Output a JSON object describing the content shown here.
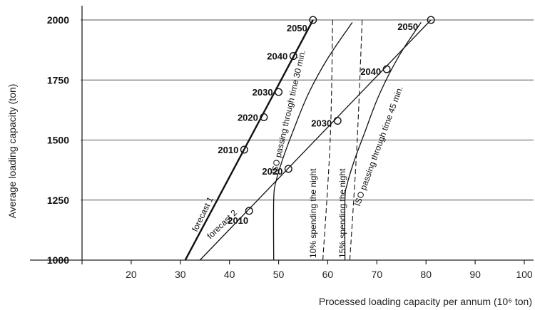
{
  "chart_data": {
    "type": "line",
    "title": "",
    "xlabel": "Processed loading capacity per annum (10⁶ ton)",
    "ylabel": "Average loading capacity (ton)",
    "xlim": [
      10,
      100
    ],
    "ylim": [
      1000,
      2000
    ],
    "x_ticks": [
      "20",
      "30",
      "40",
      "50",
      "60",
      "70",
      "80",
      "90",
      "100"
    ],
    "y_ticks": [
      "1000",
      "1250",
      "1500",
      "1750",
      "2000"
    ],
    "grid": "horizontal",
    "series": [
      {
        "name": "forecast 1",
        "style": "solid-thick",
        "points": [
          {
            "year": "2010",
            "x": 43,
            "y": 1460
          },
          {
            "year": "2020",
            "x": 47,
            "y": 1595
          },
          {
            "year": "2030",
            "x": 50,
            "y": 1700
          },
          {
            "year": "2040",
            "x": 53,
            "y": 1850
          },
          {
            "year": "2050",
            "x": 57,
            "y": 2000
          }
        ],
        "line": [
          [
            31,
            1000
          ],
          [
            57,
            2000
          ]
        ]
      },
      {
        "name": "forecast 2",
        "style": "solid",
        "points": [
          {
            "year": "2010",
            "x": 44,
            "y": 1205
          },
          {
            "year": "2020",
            "x": 52,
            "y": 1380
          },
          {
            "year": "2030",
            "x": 62,
            "y": 1580
          },
          {
            "year": "2040",
            "x": 72,
            "y": 1795
          },
          {
            "year": "2050",
            "x": 81,
            "y": 2000
          }
        ],
        "line": [
          [
            34,
            1000
          ],
          [
            81,
            2000
          ]
        ]
      },
      {
        "name": "ISO passing through time 30 min.",
        "style": "curve",
        "line": [
          [
            49,
            1000
          ],
          [
            49,
            1250
          ],
          [
            49.5,
            1330
          ],
          [
            51,
            1430
          ],
          [
            53,
            1540
          ],
          [
            56,
            1690
          ],
          [
            60,
            1840
          ],
          [
            65,
            1990
          ]
        ]
      },
      {
        "name": "ISO passing through time 45 min.",
        "style": "curve",
        "line": [
          [
            63.5,
            1000
          ],
          [
            63.5,
            1250
          ],
          [
            64,
            1320
          ],
          [
            65.5,
            1420
          ],
          [
            67.5,
            1530
          ],
          [
            70.5,
            1690
          ],
          [
            74.5,
            1850
          ],
          [
            79,
            1990
          ]
        ]
      },
      {
        "name": "10% spending the night",
        "style": "dashed",
        "line": [
          [
            59,
            1000
          ],
          [
            60.5,
            1500
          ],
          [
            61,
            2000
          ]
        ]
      },
      {
        "name": "15% spending the night",
        "style": "dashed",
        "line": [
          [
            64.5,
            1000
          ],
          [
            66,
            1500
          ],
          [
            67,
            2000
          ]
        ]
      }
    ]
  }
}
